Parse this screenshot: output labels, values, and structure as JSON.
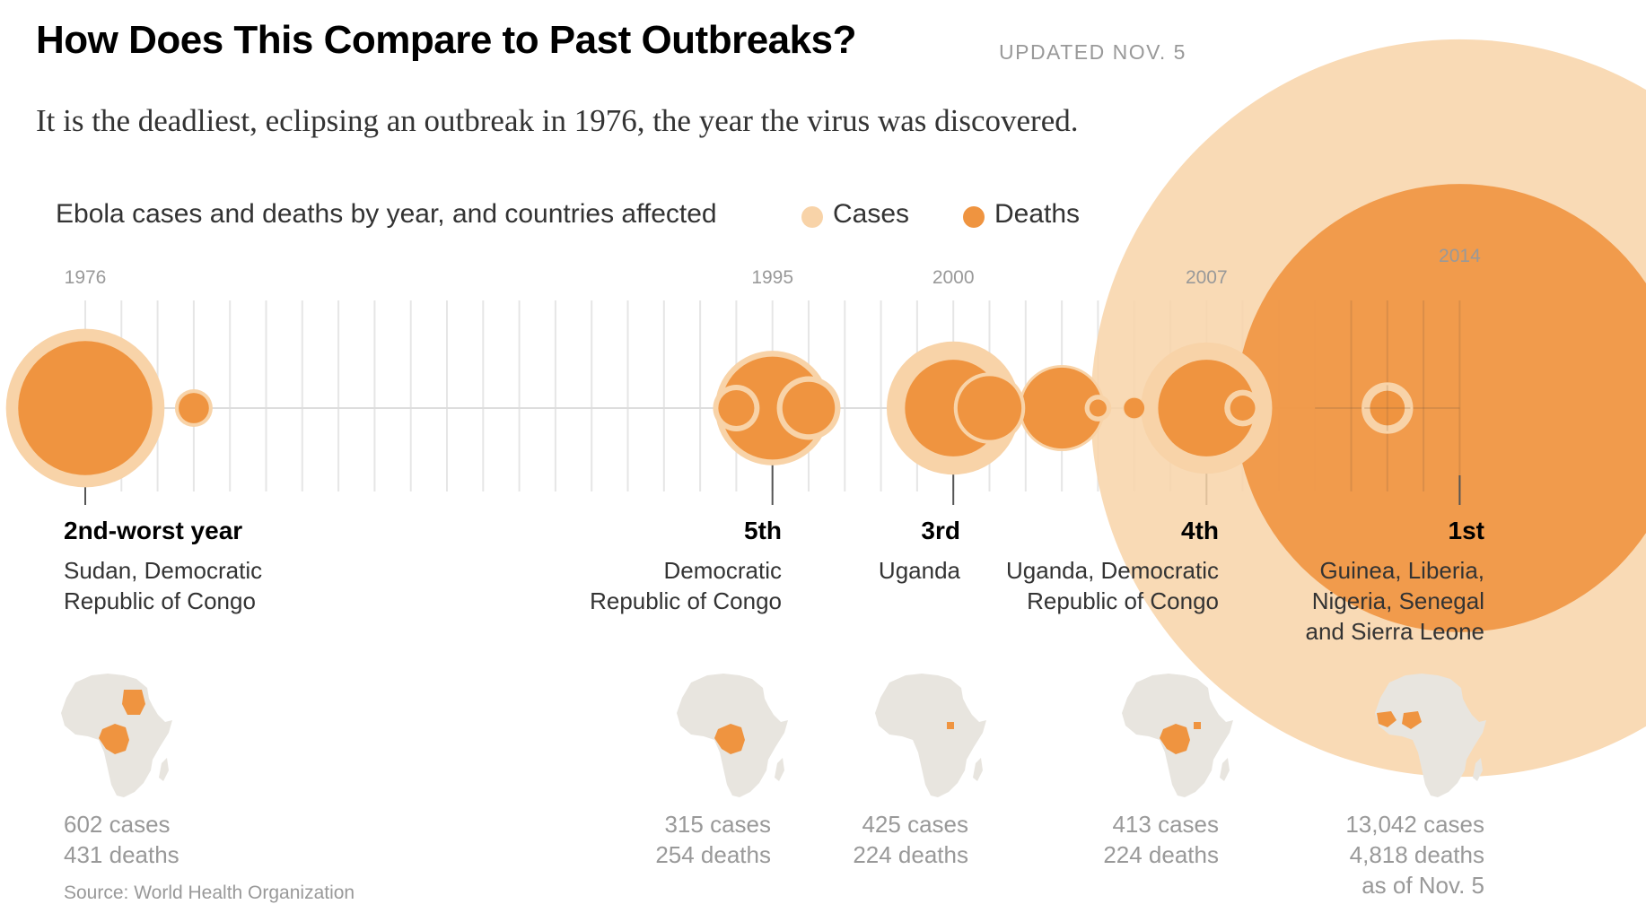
{
  "header": {
    "title": "How Does This Compare to Past Outbreaks?",
    "updated": "UPDATED NOV. 5",
    "dek": "It is the deadliest, eclipsing an outbreak in 1976, the year the virus was discovered."
  },
  "chart_data": {
    "type": "bubble-timeline",
    "title": "Ebola cases and deaths by year, and countries affected",
    "legend": [
      {
        "name": "Cases",
        "color": "#f8d3a8"
      },
      {
        "name": "Deaths",
        "color": "#ef9440"
      }
    ],
    "x_range": [
      1976,
      2014
    ],
    "year_labels": [
      "1976",
      "1995",
      "2000",
      "2007",
      "2014"
    ],
    "outbreaks": [
      {
        "year": 1976,
        "cases": 602,
        "deaths": 431,
        "ranked": true
      },
      {
        "year": 1979,
        "cases": 34,
        "deaths": 22,
        "ranked": false
      },
      {
        "year": 1994,
        "cases": 52,
        "deaths": 31,
        "ranked": false
      },
      {
        "year": 1995,
        "cases": 315,
        "deaths": 254,
        "ranked": true
      },
      {
        "year": 1996,
        "cases": 97,
        "deaths": 66,
        "ranked": false
      },
      {
        "year": 2000,
        "cases": 425,
        "deaths": 224,
        "ranked": true
      },
      {
        "year": 2001,
        "cases": 122,
        "deaths": 98,
        "ranked": false
      },
      {
        "year": 2003,
        "cases": 178,
        "deaths": 157,
        "ranked": false
      },
      {
        "year": 2004,
        "cases": 17,
        "deaths": 7,
        "ranked": false
      },
      {
        "year": 2005,
        "cases": 12,
        "deaths": 10,
        "ranked": false
      },
      {
        "year": 2007,
        "cases": 413,
        "deaths": 224,
        "ranked": true
      },
      {
        "year": 2008,
        "cases": 32,
        "deaths": 15,
        "ranked": false
      },
      {
        "year": 2012,
        "cases": 57,
        "deaths": 29,
        "ranked": false
      },
      {
        "year": 2014,
        "cases": 13042,
        "deaths": 4818,
        "ranked": true
      }
    ]
  },
  "annotations": [
    {
      "rank": "2nd-worst year",
      "countries": [
        "Sudan, Democratic",
        "Republic of Congo"
      ],
      "stats": [
        "602 cases",
        "431 deaths"
      ],
      "highlight": [
        "sudan",
        "drc"
      ]
    },
    {
      "rank": "5th",
      "countries": [
        "Democratic",
        "Republic of Congo"
      ],
      "stats": [
        "315 cases",
        "254 deaths"
      ],
      "highlight": [
        "drc"
      ]
    },
    {
      "rank": "3rd",
      "countries": [
        "Uganda"
      ],
      "stats": [
        "425 cases",
        "224 deaths"
      ],
      "highlight": [
        "uganda"
      ]
    },
    {
      "rank": "4th",
      "countries": [
        "Uganda, Democratic",
        "Republic of Congo"
      ],
      "stats": [
        "413 cases",
        "224 deaths"
      ],
      "highlight": [
        "uganda",
        "drc"
      ]
    },
    {
      "rank": "1st",
      "countries": [
        "Guinea, Liberia,",
        "Nigeria, Senegal",
        "and Sierra Leone"
      ],
      "stats": [
        "13,042 cases",
        "4,818 deaths",
        "as of Nov. 5"
      ],
      "highlight": [
        "westafrica",
        "nigeria"
      ]
    }
  ],
  "source": "Source: World Health Organization"
}
